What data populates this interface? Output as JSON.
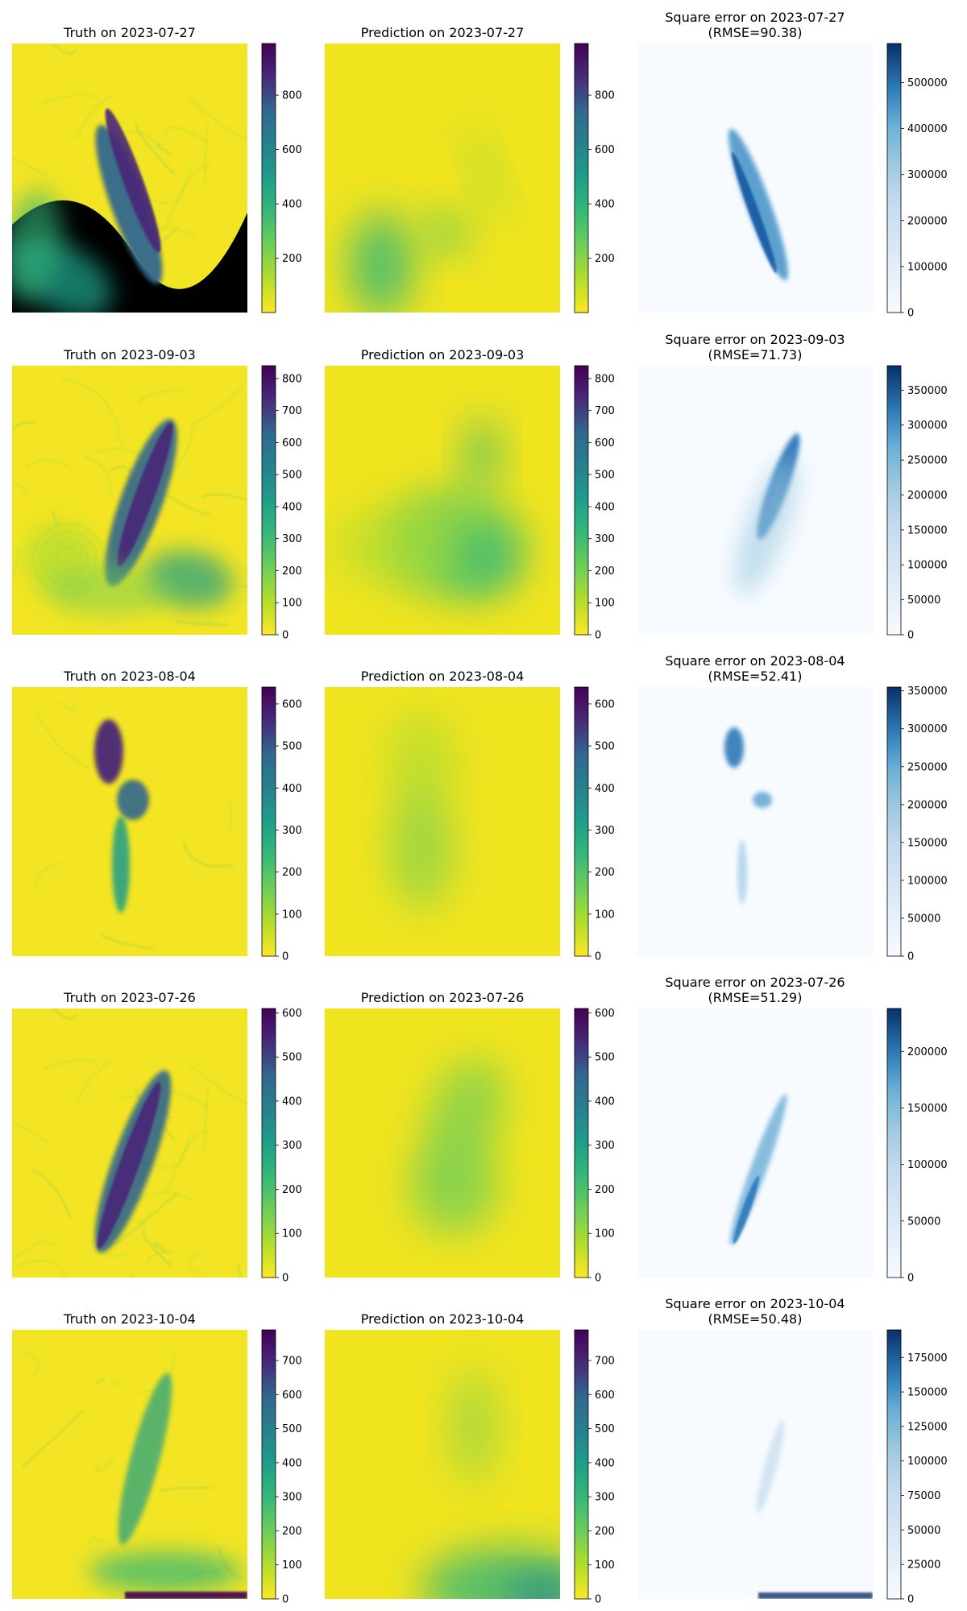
{
  "chart_data": [
    {
      "row": 1,
      "date": "2023-07-27",
      "truth": {
        "type": "heatmap",
        "title": "Truth on 2023-07-27",
        "colormap": "viridis_r",
        "colorbar_ticks": [
          200,
          400,
          600,
          800
        ],
        "colorbar_range": [
          0,
          990
        ]
      },
      "prediction": {
        "type": "heatmap",
        "title": "Prediction on 2023-07-27",
        "colormap": "viridis_r",
        "colorbar_ticks": [
          200,
          400,
          600,
          800
        ],
        "colorbar_range": [
          0,
          990
        ]
      },
      "error": {
        "type": "heatmap",
        "title": "Square error on 2023-07-27",
        "rmse_label": "(RMSE=90.38)",
        "rmse": 90.38,
        "colormap": "Blues",
        "colorbar_ticks": [
          0,
          100000,
          200000,
          300000,
          400000,
          500000
        ],
        "colorbar_range": [
          0,
          585000
        ]
      }
    },
    {
      "row": 2,
      "date": "2023-09-03",
      "truth": {
        "type": "heatmap",
        "title": "Truth on 2023-09-03",
        "colormap": "viridis_r",
        "colorbar_ticks": [
          0,
          100,
          200,
          300,
          400,
          500,
          600,
          700,
          800
        ],
        "colorbar_range": [
          0,
          840
        ]
      },
      "prediction": {
        "type": "heatmap",
        "title": "Prediction on 2023-09-03",
        "colormap": "viridis_r",
        "colorbar_ticks": [
          0,
          100,
          200,
          300,
          400,
          500,
          600,
          700,
          800
        ],
        "colorbar_range": [
          0,
          840
        ]
      },
      "error": {
        "type": "heatmap",
        "title": "Square error on 2023-09-03",
        "rmse_label": "(RMSE=71.73)",
        "rmse": 71.73,
        "colormap": "Blues",
        "colorbar_ticks": [
          0,
          50000,
          100000,
          150000,
          200000,
          250000,
          300000,
          350000
        ],
        "colorbar_range": [
          0,
          385000
        ]
      }
    },
    {
      "row": 3,
      "date": "2023-08-04",
      "truth": {
        "type": "heatmap",
        "title": "Truth on 2023-08-04",
        "colormap": "viridis_r",
        "colorbar_ticks": [
          0,
          100,
          200,
          300,
          400,
          500,
          600
        ],
        "colorbar_range": [
          0,
          640
        ]
      },
      "prediction": {
        "type": "heatmap",
        "title": "Prediction on 2023-08-04",
        "colormap": "viridis_r",
        "colorbar_ticks": [
          0,
          100,
          200,
          300,
          400,
          500,
          600
        ],
        "colorbar_range": [
          0,
          640
        ]
      },
      "error": {
        "type": "heatmap",
        "title": "Square error on 2023-08-04",
        "rmse_label": "(RMSE=52.41)",
        "rmse": 52.41,
        "colormap": "Blues",
        "colorbar_ticks": [
          0,
          50000,
          100000,
          150000,
          200000,
          250000,
          300000,
          350000
        ],
        "colorbar_range": [
          0,
          355000
        ]
      }
    },
    {
      "row": 4,
      "date": "2023-07-26",
      "truth": {
        "type": "heatmap",
        "title": "Truth on 2023-07-26",
        "colormap": "viridis_r",
        "colorbar_ticks": [
          0,
          100,
          200,
          300,
          400,
          500,
          600
        ],
        "colorbar_range": [
          0,
          610
        ]
      },
      "prediction": {
        "type": "heatmap",
        "title": "Prediction on 2023-07-26",
        "colormap": "viridis_r",
        "colorbar_ticks": [
          0,
          100,
          200,
          300,
          400,
          500,
          600
        ],
        "colorbar_range": [
          0,
          610
        ]
      },
      "error": {
        "type": "heatmap",
        "title": "Square error on 2023-07-26",
        "rmse_label": "(RMSE=51.29)",
        "rmse": 51.29,
        "colormap": "Blues",
        "colorbar_ticks": [
          0,
          50000,
          100000,
          150000,
          200000
        ],
        "colorbar_range": [
          0,
          238000
        ]
      }
    },
    {
      "row": 5,
      "date": "2023-10-04",
      "truth": {
        "type": "heatmap",
        "title": "Truth on 2023-10-04",
        "colormap": "viridis_r",
        "colorbar_ticks": [
          0,
          100,
          200,
          300,
          400,
          500,
          600,
          700
        ],
        "colorbar_range": [
          0,
          790
        ]
      },
      "prediction": {
        "type": "heatmap",
        "title": "Prediction on 2023-10-04",
        "colormap": "viridis_r",
        "colorbar_ticks": [
          0,
          100,
          200,
          300,
          400,
          500,
          600,
          700
        ],
        "colorbar_range": [
          0,
          790
        ]
      },
      "error": {
        "type": "heatmap",
        "title": "Square error on 2023-10-04",
        "rmse_label": "(RMSE=50.48)",
        "rmse": 50.48,
        "colormap": "Blues",
        "colorbar_ticks": [
          0,
          25000,
          50000,
          75000,
          100000,
          125000,
          150000,
          175000
        ],
        "colorbar_range": [
          0,
          195000
        ]
      }
    }
  ],
  "colors": {
    "viridis_low": "#fde725",
    "viridis_mid": "#21918c",
    "viridis_high": "#440154",
    "blues_low": "#f7fbff",
    "blues_high": "#08306b"
  }
}
